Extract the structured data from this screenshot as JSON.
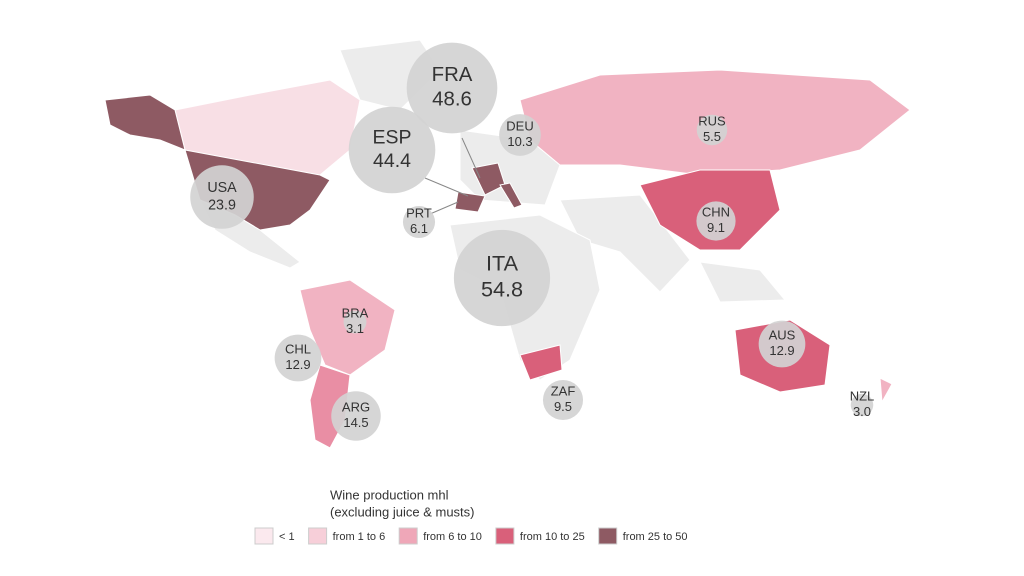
{
  "legend": {
    "title": [
      "Wine production mhl",
      "(excluding juice & musts)"
    ],
    "items": [
      {
        "label": "< 1",
        "color": "#fbe9ee"
      },
      {
        "label": "from 1 to 6",
        "color": "#f7cfd9"
      },
      {
        "label": "from 6 to 10",
        "color": "#efa7b8"
      },
      {
        "label": "from 10 to 25",
        "color": "#d9607a"
      },
      {
        "label": "from 25 to 50",
        "color": "#8e5a63"
      }
    ]
  },
  "bubbles": {
    "codes": [
      "FRA",
      "ESP",
      "USA",
      "PRT",
      "ITA",
      "DEU",
      "RUS",
      "CHN",
      "BRA",
      "CHL",
      "ARG",
      "ZAF",
      "AUS",
      "NZL"
    ],
    "values": [
      48.6,
      44.4,
      23.9,
      6.1,
      54.8,
      10.3,
      5.5,
      9.1,
      3.1,
      12.9,
      14.5,
      9.5,
      12.9,
      3.0
    ],
    "value_labels": [
      "48.6",
      "44.4",
      "23.9",
      "6.1",
      "54.8",
      "10.3",
      "5.5",
      "9.1",
      "3.1",
      "12.9",
      "14.5",
      "9.5",
      "12.9",
      "3.0"
    ],
    "color": "#d3d3d3"
  }
}
